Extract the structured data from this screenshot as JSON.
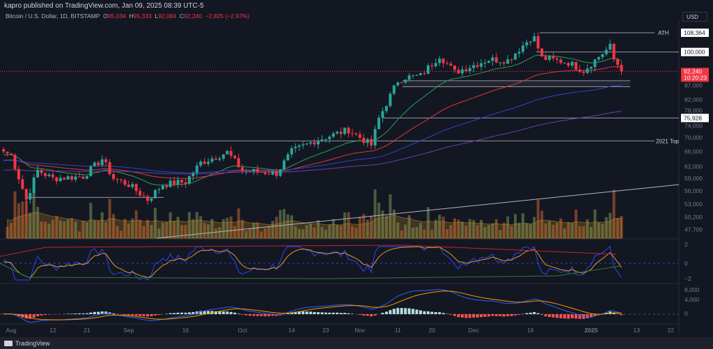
{
  "header": {
    "published": "kapro published on TradingView.com, Jan 09, 2025 08:39 UTC-5",
    "symbol": "Bitcoin / U.S. Dollar, 1D, BITSTAMP",
    "open_label": "O",
    "open": "95,034",
    "high_label": "H",
    "high": "95,333",
    "low_label": "L",
    "low": "92,084",
    "close_label": "C",
    "close": "92,240",
    "change": "−2,825 (−2.97%)"
  },
  "currency": "USD",
  "footer": {
    "brand": "TradingView"
  },
  "colors": {
    "up": "#26a69a",
    "down": "#f23645",
    "ma_fast": "#2e9e4f",
    "ma_mid": "#e0363a",
    "ma_slow": "#2f44c8",
    "ma_long": "#6a3fb0",
    "bg": "#131722"
  },
  "chart_data": {
    "type": "candlestick",
    "scale": "log",
    "ylim": [
      46000,
      112000
    ],
    "price_ticks": [
      "87,000",
      "82,000",
      "78,000",
      "74,000",
      "70,000",
      "66,000",
      "62,000",
      "59,000",
      "56,000",
      "53,000",
      "50,200",
      "47,700"
    ],
    "price_tick_values": [
      87000,
      82000,
      78000,
      74000,
      70000,
      66000,
      62000,
      59000,
      56000,
      53000,
      50200,
      47700
    ],
    "time_ticks": [
      "Aug",
      "12",
      "21",
      "Sep",
      "16",
      "Oct",
      "14",
      "23",
      "Nov",
      "11",
      "20",
      "Dec",
      "16",
      "2025",
      "13",
      "22"
    ],
    "time_tick_dates": [
      "2024-08-01",
      "2024-08-12",
      "2024-08-21",
      "2024-09-01",
      "2024-09-16",
      "2024-10-01",
      "2024-10-14",
      "2024-10-23",
      "2024-11-01",
      "2024-11-11",
      "2024-11-20",
      "2024-12-01",
      "2024-12-16",
      "2025-01-01",
      "2025-01-13",
      "2025-01-22"
    ],
    "closes": [
      [
        "2024-07-30",
        66000
      ],
      [
        "2024-08-01",
        65000
      ],
      [
        "2024-08-05",
        54000
      ],
      [
        "2024-08-08",
        61000
      ],
      [
        "2024-08-12",
        59000
      ],
      [
        "2024-08-20",
        59500
      ],
      [
        "2024-08-25",
        64000
      ],
      [
        "2024-08-28",
        59000
      ],
      [
        "2024-09-01",
        57500
      ],
      [
        "2024-09-06",
        54000
      ],
      [
        "2024-09-10",
        57500
      ],
      [
        "2024-09-16",
        58200
      ],
      [
        "2024-09-20",
        63000
      ],
      [
        "2024-09-27",
        65800
      ],
      [
        "2024-10-01",
        61000
      ],
      [
        "2024-10-10",
        60300
      ],
      [
        "2024-10-14",
        66000
      ],
      [
        "2024-10-20",
        69000
      ],
      [
        "2024-10-29",
        72300
      ],
      [
        "2024-11-04",
        67800
      ],
      [
        "2024-11-06",
        75800
      ],
      [
        "2024-11-11",
        88700
      ],
      [
        "2024-11-13",
        90000
      ],
      [
        "2024-11-17",
        90500
      ],
      [
        "2024-11-22",
        98500
      ],
      [
        "2024-11-26",
        91900
      ],
      [
        "2024-12-05",
        97000
      ],
      [
        "2024-12-10",
        96600
      ],
      [
        "2024-12-16",
        106100
      ],
      [
        "2024-12-17",
        106000
      ],
      [
        "2024-12-19",
        97500
      ],
      [
        "2024-12-26",
        95700
      ],
      [
        "2024-12-30",
        92500
      ],
      [
        "2025-01-03",
        98100
      ],
      [
        "2025-01-06",
        102200
      ],
      [
        "2025-01-07",
        96900
      ],
      [
        "2025-01-08",
        95000
      ],
      [
        "2025-01-09",
        92240
      ]
    ],
    "levels": [
      {
        "label": "ATH",
        "value": 108364,
        "tag": "108,364"
      },
      {
        "label": "",
        "value": 100000,
        "tag": "100,000"
      },
      {
        "label": "",
        "value": 75928,
        "tag": "75,928"
      },
      {
        "label": "2021 Top",
        "value": 69000,
        "tag": ""
      }
    ],
    "last_price": {
      "value": 92240,
      "tag": "92,240",
      "countdown": "10:20:23"
    },
    "oscillator_ticks": [
      "2",
      "0",
      "−2"
    ],
    "macd_ticks": [
      "8,000",
      "4,000",
      "0"
    ]
  }
}
